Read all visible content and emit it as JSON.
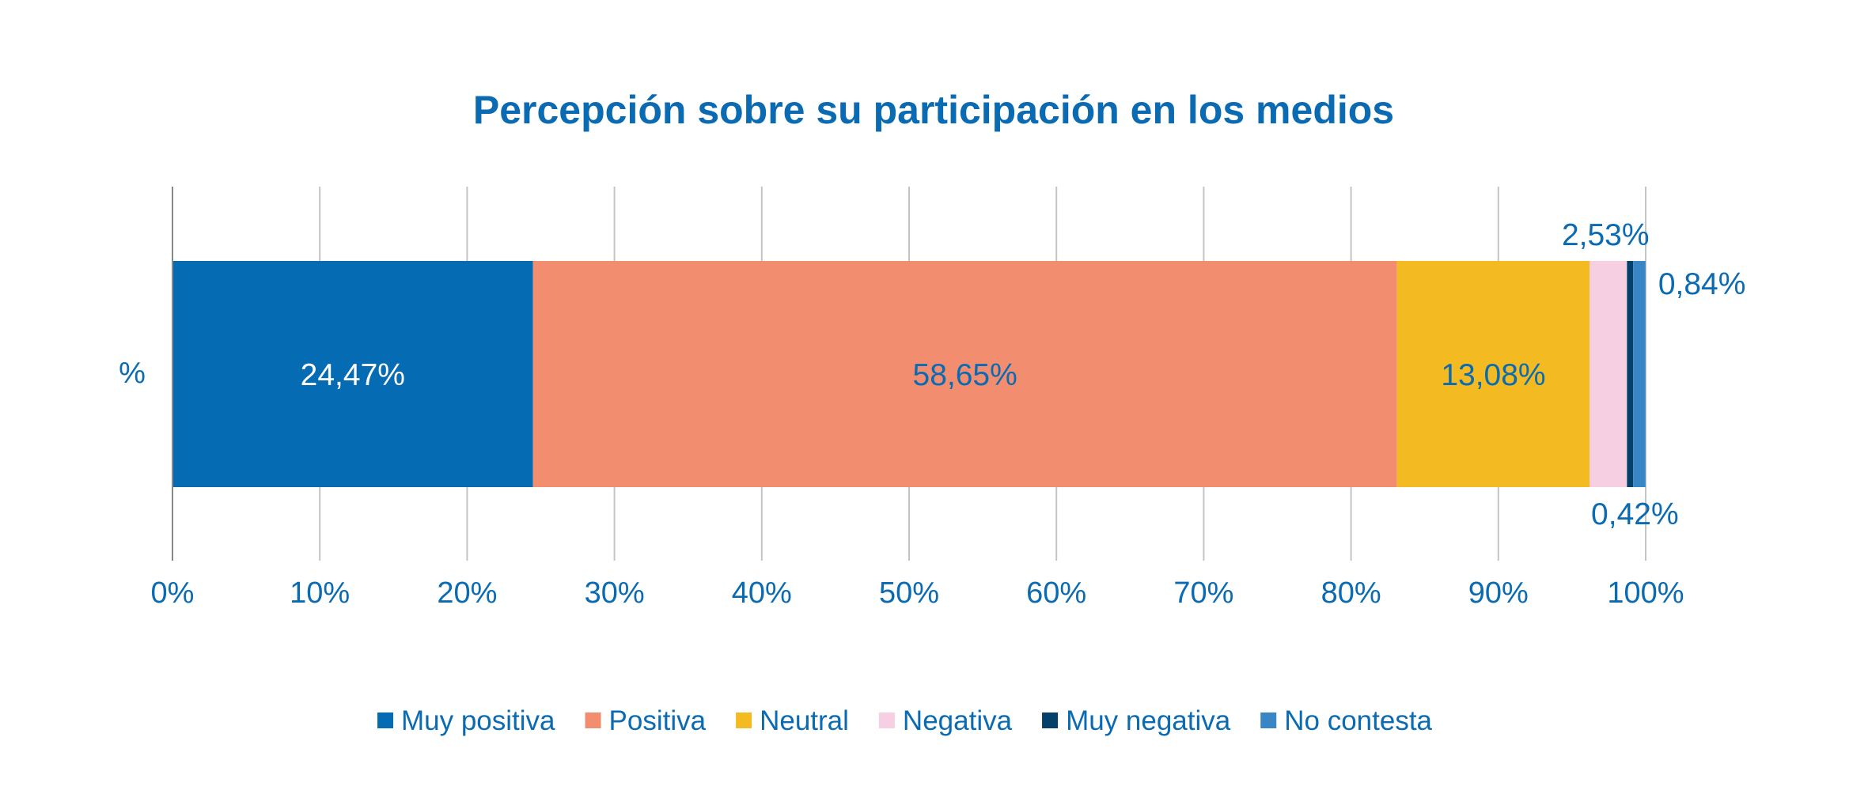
{
  "chart_data": {
    "type": "bar",
    "orientation": "horizontal-stacked-100",
    "title": "Percepción sobre su participación en los medios",
    "categories": [
      "%"
    ],
    "xlim": [
      0,
      100
    ],
    "x_ticks": [
      "0%",
      "10%",
      "20%",
      "30%",
      "40%",
      "50%",
      "60%",
      "70%",
      "80%",
      "90%",
      "100%"
    ],
    "grid": true,
    "legend_position": "bottom",
    "series": [
      {
        "name": "Muy positiva",
        "values": [
          24.47
        ],
        "label": "24,47%",
        "color": "#056bb3",
        "label_color": "#ffffff"
      },
      {
        "name": "Positiva",
        "values": [
          58.65
        ],
        "label": "58,65%",
        "color": "#f28d6f",
        "label_color": "#0a6ab2"
      },
      {
        "name": "Neutral",
        "values": [
          13.08
        ],
        "label": "13,08%",
        "color": "#f3bb21",
        "label_color": "#0a6ab2"
      },
      {
        "name": "Negativa",
        "values": [
          2.53
        ],
        "label": "2,53%",
        "color": "#f7cfe3",
        "label_color": "#0a6ab2"
      },
      {
        "name": "Muy negativa",
        "values": [
          0.42
        ],
        "label": "0,42%",
        "color": "#03406a",
        "label_color": "#0a6ab2"
      },
      {
        "name": "No contesta",
        "values": [
          0.84
        ],
        "label": "0,84%",
        "color": "#3886c5",
        "label_color": "#0a6ab2"
      }
    ]
  }
}
